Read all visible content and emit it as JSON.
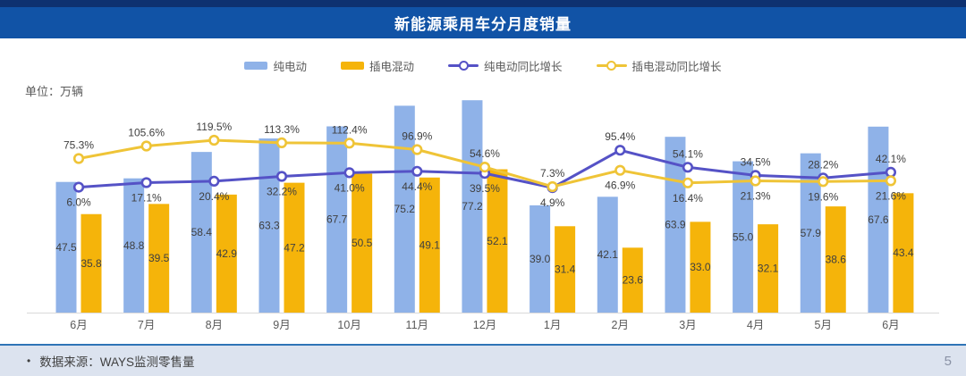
{
  "header": {
    "title": "新能源乘用车分月度销量"
  },
  "unit_label": "单位：万辆",
  "footer": {
    "bullet": "•",
    "source_label": "数据来源：WAYS监测零售量",
    "page_number": "5"
  },
  "colors": {
    "banner": "#1153A6",
    "banner_top_strip": "#0E3170",
    "footer_bg": "#DCE3EF",
    "footer_border": "#2E74B6",
    "axis": "#D9D9D9",
    "data_label": "#404040",
    "muted_text": "#595959",
    "page_number": "#8A92A5"
  },
  "chart_data": {
    "type": "bar+line combo",
    "title": "新能源乘用车分月度销量",
    "xlabel": "",
    "ylabel": "万辆",
    "value_axes_hidden": true,
    "grid": false,
    "legend_position": "top",
    "categories": [
      "6月",
      "7月",
      "8月",
      "9月",
      "10月",
      "11月",
      "12月",
      "1月",
      "2月",
      "3月",
      "4月",
      "5月",
      "6月"
    ],
    "series": [
      {
        "name": "纯电动",
        "type": "bar",
        "unit": "万辆",
        "color": "#8FB2E8",
        "values": [
          47.5,
          48.8,
          58.4,
          63.3,
          67.7,
          75.2,
          77.2,
          39.0,
          42.1,
          63.9,
          55.0,
          57.9,
          67.6
        ]
      },
      {
        "name": "插电混动",
        "type": "bar",
        "unit": "万辆",
        "color": "#F5B40A",
        "values": [
          35.8,
          39.5,
          42.9,
          47.2,
          50.5,
          49.1,
          52.1,
          31.4,
          23.6,
          33.0,
          32.1,
          38.6,
          43.4
        ]
      },
      {
        "name": "纯电动同比增长",
        "type": "line",
        "unit": "%",
        "color": "#5552C6",
        "values": [
          6.0,
          17.1,
          20.4,
          32.2,
          41.0,
          44.4,
          39.5,
          4.9,
          95.4,
          54.1,
          34.5,
          28.2,
          42.1
        ]
      },
      {
        "name": "插电混动同比增长",
        "type": "line",
        "unit": "%",
        "color": "#EFC437",
        "values": [
          75.3,
          105.6,
          119.5,
          113.3,
          112.4,
          96.9,
          54.6,
          7.3,
          46.9,
          16.4,
          21.3,
          19.6,
          21.6
        ]
      }
    ],
    "label_format": {
      "bar": "one_decimal",
      "line": "one_decimal_percent"
    }
  }
}
